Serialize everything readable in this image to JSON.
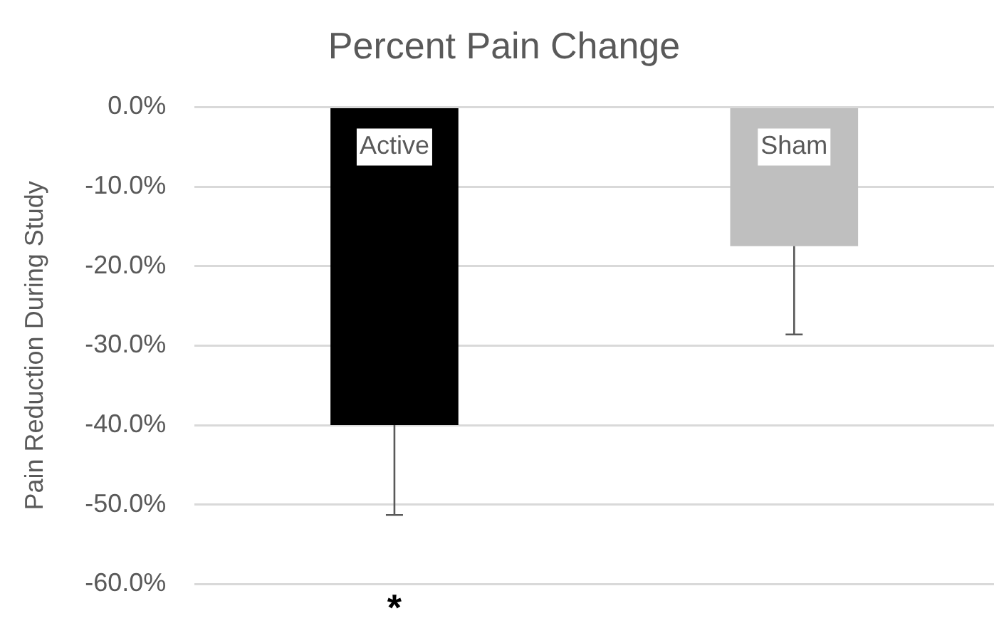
{
  "chart_data": {
    "type": "bar",
    "title": "Percent Pain Change",
    "ylabel": "Pain Reduction During Study",
    "categories": [
      "Active",
      "Sham"
    ],
    "values": [
      -40,
      -17.5
    ],
    "colors": [
      "#000000",
      "#bfbfbf"
    ],
    "errors": [
      [
        -51.3,
        -40
      ],
      [
        -28.6,
        -17.5
      ]
    ],
    "ylim": [
      -60,
      0
    ],
    "yticks": [
      {
        "value": 0,
        "label": "0.0%"
      },
      {
        "value": -10,
        "label": "-10.0%"
      },
      {
        "value": -20,
        "label": "-20.0%"
      },
      {
        "value": -30,
        "label": "-30.0%"
      },
      {
        "value": -40,
        "label": "-40.0%"
      },
      {
        "value": -50,
        "label": "-50.0%"
      },
      {
        "value": -60,
        "label": "-60.0%"
      }
    ],
    "grid": "y",
    "legend": false,
    "tick_labels": "y",
    "annotations": [
      "*"
    ]
  }
}
